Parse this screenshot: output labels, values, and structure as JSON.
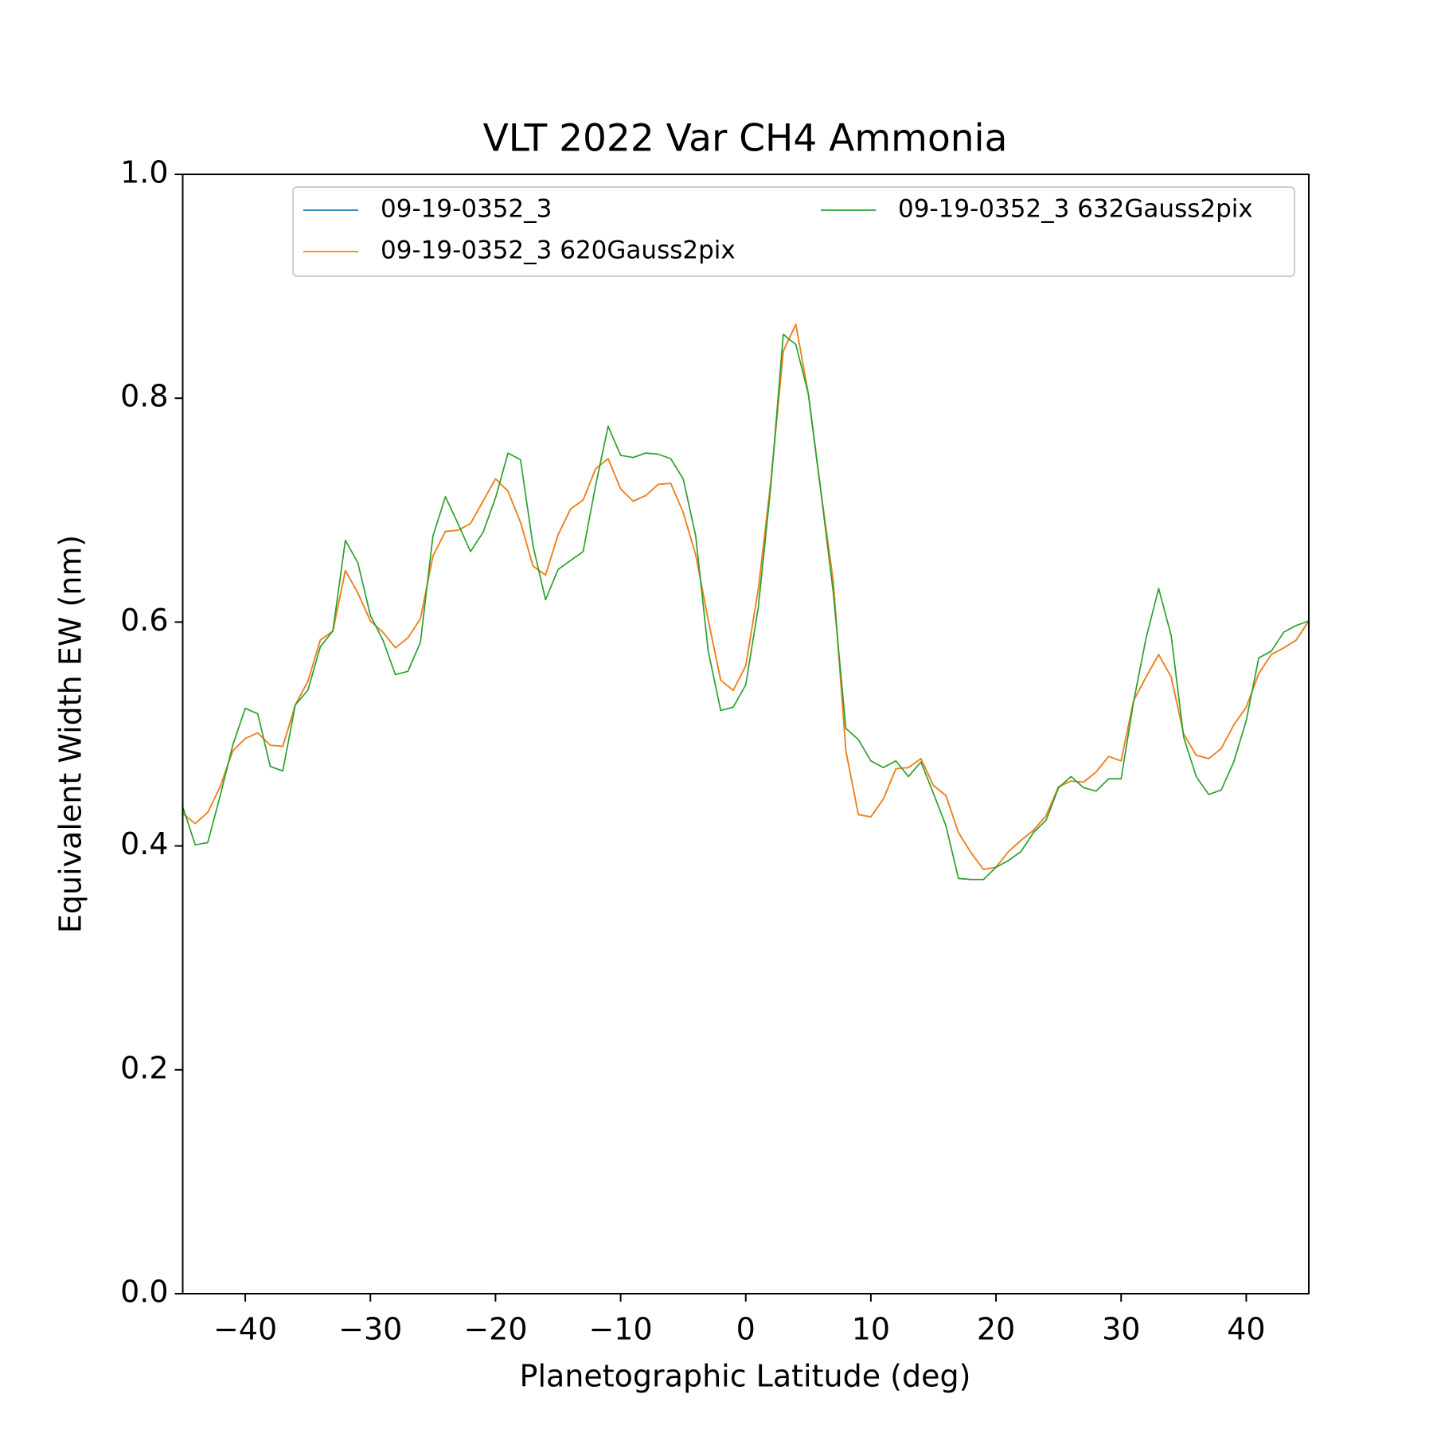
{
  "chart_data": {
    "type": "line",
    "title": "VLT 2022 Var CH4 Ammonia",
    "xlabel": "Planetographic Latitude (deg)",
    "ylabel": "Equivalent Width EW (nm)",
    "xlim": [
      -45,
      45
    ],
    "ylim": [
      0,
      1
    ],
    "xticks": [
      {
        "value": -40,
        "label": "−40"
      },
      {
        "value": -30,
        "label": "−30"
      },
      {
        "value": -20,
        "label": "−20"
      },
      {
        "value": -10,
        "label": "−10"
      },
      0,
      10,
      20,
      30,
      40
    ],
    "yticks": [
      {
        "value": 0,
        "label": "0.0"
      },
      0.2,
      0.4,
      0.6,
      0.8,
      {
        "value": 1,
        "label": "1.0"
      }
    ],
    "legend": "upper right",
    "x": [
      -45,
      -44,
      -43,
      -42,
      -41,
      -40,
      -39,
      -38,
      -37,
      -36,
      -35,
      -34,
      -33,
      -32,
      -31,
      -30,
      -29,
      -28,
      -27,
      -26,
      -25,
      -24,
      -23,
      -22,
      -21,
      -20,
      -19,
      -18,
      -17,
      -16,
      -15,
      -14,
      -13,
      -12,
      -11,
      -10,
      -9,
      -8,
      -7,
      -6,
      -5,
      -4,
      -3,
      -2,
      -1,
      0,
      1,
      2,
      3,
      4,
      5,
      6,
      7,
      8,
      9,
      10,
      11,
      12,
      13,
      14,
      15,
      16,
      17,
      18,
      19,
      20,
      21,
      22,
      23,
      24,
      25,
      26,
      27,
      28,
      29,
      30,
      31,
      32,
      33,
      34,
      35,
      36,
      37,
      38,
      39,
      40,
      41,
      42,
      43,
      44,
      45
    ],
    "series": [
      {
        "name": "09-19-0352_3",
        "color": "#1f77b4",
        "values": [
          0.429,
          0.42,
          0.43,
          0.453,
          0.485,
          0.496,
          0.501,
          0.49,
          0.489,
          0.526,
          0.547,
          0.584,
          0.592,
          0.646,
          0.626,
          0.601,
          0.591,
          0.577,
          0.586,
          0.603,
          0.659,
          0.681,
          0.682,
          0.688,
          0.708,
          0.728,
          0.717,
          0.689,
          0.65,
          0.642,
          0.678,
          0.701,
          0.709,
          0.737,
          0.746,
          0.719,
          0.708,
          0.713,
          0.723,
          0.724,
          0.698,
          0.66,
          0.602,
          0.548,
          0.539,
          0.561,
          0.629,
          0.725,
          0.842,
          0.866,
          0.804,
          0.717,
          0.636,
          0.485,
          0.428,
          0.426,
          0.442,
          0.469,
          0.47,
          0.478,
          0.454,
          0.445,
          0.412,
          0.394,
          0.379,
          0.381,
          0.395,
          0.405,
          0.414,
          0.427,
          0.453,
          0.458,
          0.457,
          0.466,
          0.48,
          0.476,
          0.53,
          0.551,
          0.571,
          0.551,
          0.5,
          0.481,
          0.478,
          0.487,
          0.508,
          0.524,
          0.554,
          0.571,
          0.577,
          0.584,
          0.601
        ]
      },
      {
        "name": "09-19-0352_3 620Gauss2pix",
        "color": "#ff7f0e",
        "values": [
          0.429,
          0.42,
          0.43,
          0.453,
          0.485,
          0.496,
          0.501,
          0.49,
          0.489,
          0.526,
          0.547,
          0.584,
          0.592,
          0.646,
          0.626,
          0.601,
          0.591,
          0.577,
          0.586,
          0.603,
          0.659,
          0.681,
          0.682,
          0.688,
          0.708,
          0.728,
          0.717,
          0.689,
          0.65,
          0.642,
          0.678,
          0.701,
          0.709,
          0.737,
          0.746,
          0.719,
          0.708,
          0.713,
          0.723,
          0.724,
          0.698,
          0.66,
          0.602,
          0.548,
          0.539,
          0.561,
          0.629,
          0.725,
          0.842,
          0.866,
          0.804,
          0.717,
          0.636,
          0.485,
          0.428,
          0.426,
          0.442,
          0.469,
          0.47,
          0.478,
          0.454,
          0.445,
          0.412,
          0.394,
          0.379,
          0.381,
          0.395,
          0.405,
          0.414,
          0.427,
          0.453,
          0.458,
          0.457,
          0.466,
          0.48,
          0.476,
          0.53,
          0.551,
          0.571,
          0.551,
          0.5,
          0.481,
          0.478,
          0.487,
          0.508,
          0.524,
          0.554,
          0.571,
          0.577,
          0.584,
          0.601
        ]
      },
      {
        "name": "09-19-0352_3 632Gauss2pix",
        "color": "#2ca02c",
        "values": [
          0.435,
          0.401,
          0.403,
          0.445,
          0.49,
          0.523,
          0.518,
          0.471,
          0.467,
          0.526,
          0.539,
          0.578,
          0.592,
          0.673,
          0.653,
          0.606,
          0.584,
          0.553,
          0.556,
          0.582,
          0.677,
          0.712,
          0.688,
          0.663,
          0.68,
          0.711,
          0.751,
          0.745,
          0.668,
          0.62,
          0.647,
          0.655,
          0.663,
          0.722,
          0.775,
          0.749,
          0.747,
          0.751,
          0.75,
          0.746,
          0.728,
          0.677,
          0.574,
          0.521,
          0.524,
          0.544,
          0.613,
          0.721,
          0.857,
          0.848,
          0.804,
          0.717,
          0.626,
          0.505,
          0.495,
          0.476,
          0.47,
          0.476,
          0.462,
          0.475,
          0.447,
          0.418,
          0.371,
          0.37,
          0.37,
          0.381,
          0.387,
          0.395,
          0.412,
          0.423,
          0.452,
          0.462,
          0.452,
          0.449,
          0.46,
          0.46,
          0.529,
          0.586,
          0.63,
          0.588,
          0.497,
          0.462,
          0.446,
          0.45,
          0.475,
          0.512,
          0.568,
          0.574,
          0.591,
          0.597,
          0.601
        ]
      }
    ]
  }
}
